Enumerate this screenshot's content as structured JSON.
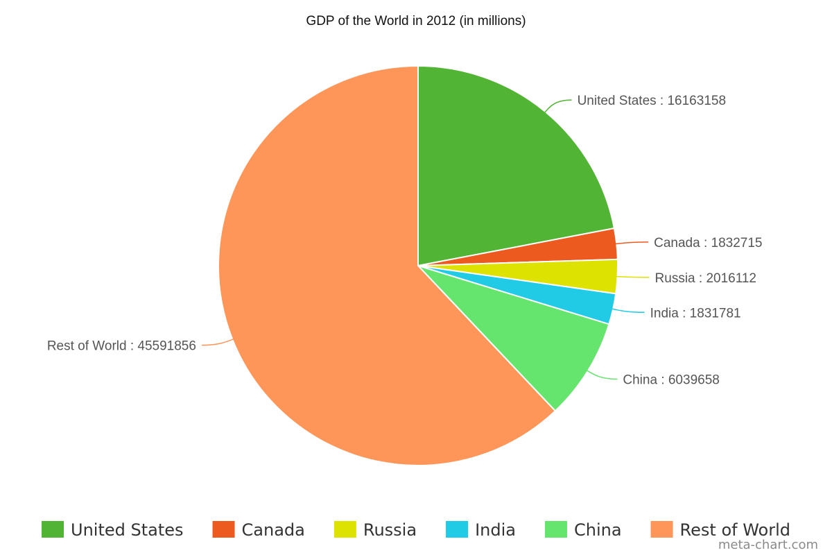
{
  "chart_data": {
    "type": "pie",
    "title": "GDP of the World in 2012 (in millions)",
    "slices": [
      {
        "name": "United States",
        "value": 16163158,
        "label": "United States : 16163158",
        "color": "#52b434"
      },
      {
        "name": "Canada",
        "value": 1832715,
        "label": "Canada : 1832715",
        "color": "#ec5a20"
      },
      {
        "name": "Russia",
        "value": 2016112,
        "label": "Russia : 2016112",
        "color": "#dde200"
      },
      {
        "name": "India",
        "value": 1831781,
        "label": "India : 1831781",
        "color": "#22cbe5"
      },
      {
        "name": "China",
        "value": 6039658,
        "label": "China : 6039658",
        "color": "#66e56e"
      },
      {
        "name": "Rest of World",
        "value": 45591856,
        "label": "Rest of World : 45591856",
        "color": "#fe9659"
      }
    ],
    "legend": {
      "placement": "bottom",
      "entries": [
        "United States",
        "Canada",
        "Russia",
        "India",
        "China",
        "Rest of World"
      ]
    }
  },
  "watermark": "meta-chart.com"
}
